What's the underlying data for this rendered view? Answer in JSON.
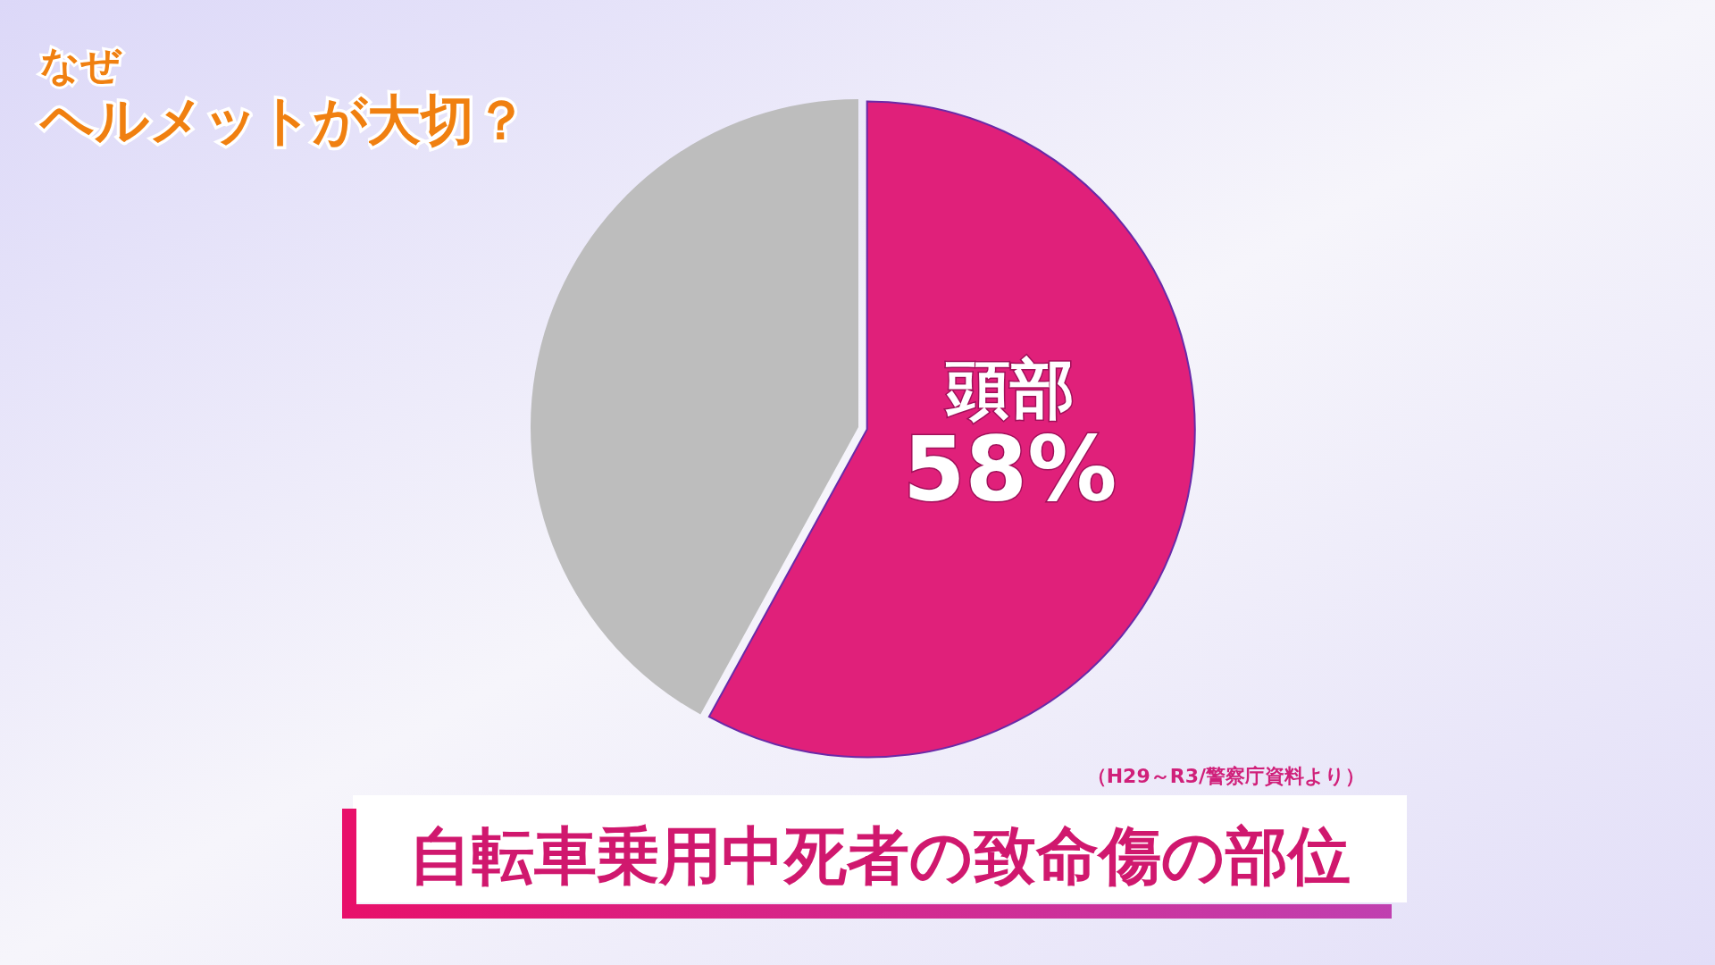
{
  "chart_data": {
    "type": "pie",
    "title": "自転車乗用中死者の致命傷の部位",
    "categories": [
      "頭部",
      null
    ],
    "values": [
      58,
      42
    ],
    "colors": [
      "#e0207a",
      "#bdbdbd"
    ],
    "value_labels": [
      "58%",
      null
    ],
    "annotations": [
      "なぜ",
      "ヘルメットが大切？",
      "（H29～R3/警察庁資料より）"
    ]
  }
}
